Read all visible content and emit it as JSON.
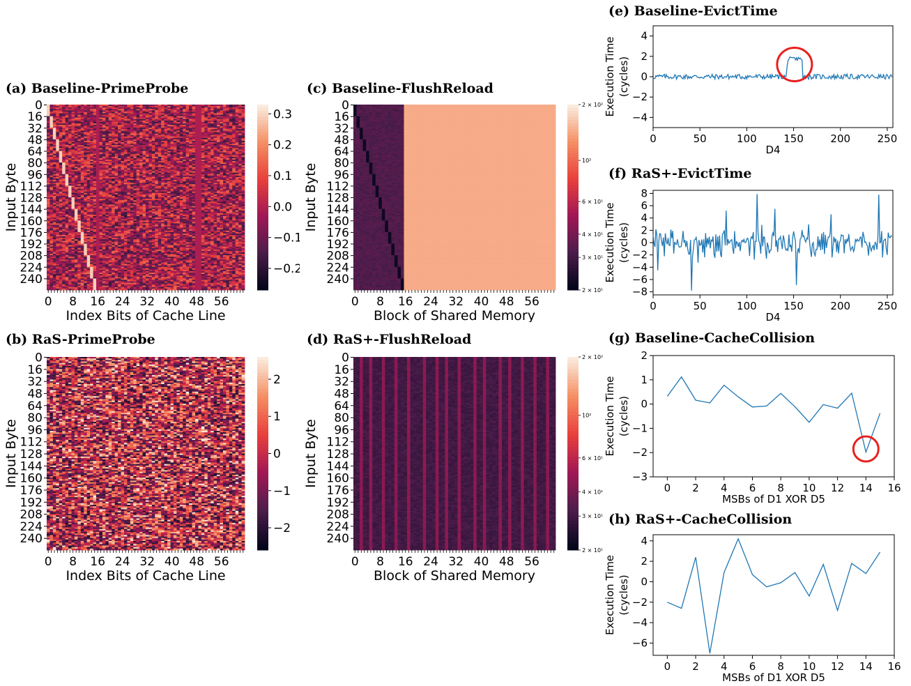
{
  "chart_data": [
    {
      "id": "a",
      "type": "heatmap",
      "title": "(a) Baseline-PrimeProbe",
      "xlabel": "Index Bits of Cache Line",
      "ylabel": "Input Byte",
      "xticks": [
        "0",
        "8",
        "16",
        "24",
        "32",
        "40",
        "48",
        "56"
      ],
      "yticks": [
        "0",
        "16",
        "32",
        "48",
        "64",
        "80",
        "96",
        "112",
        "128",
        "144",
        "160",
        "176",
        "192",
        "208",
        "224",
        "240"
      ],
      "colorbar": {
        "ticks": [
          "0.3",
          "0.2",
          "0.1",
          "0.0",
          "−0.1",
          "−0.2"
        ],
        "range": [
          -0.27,
          0.33
        ]
      },
      "rows": 256,
      "cols": 64,
      "pattern": "random noise; diagonal of high values from (col 0,row 0) to (col 15,row 255); uniform columns at 16 and 48-49"
    },
    {
      "id": "b",
      "type": "heatmap",
      "title": "(b) RaS-PrimeProbe",
      "xlabel": "Index Bits of Cache Line",
      "ylabel": "Input Byte",
      "xticks": [
        "0",
        "8",
        "16",
        "24",
        "32",
        "40",
        "48",
        "56"
      ],
      "yticks": [
        "0",
        "16",
        "32",
        "48",
        "64",
        "80",
        "96",
        "112",
        "128",
        "144",
        "160",
        "176",
        "192",
        "208",
        "224",
        "240"
      ],
      "colorbar": {
        "ticks": [
          "2",
          "1",
          "0",
          "−1",
          "−2"
        ],
        "range": [
          -2.6,
          2.6
        ]
      },
      "rows": 256,
      "cols": 64,
      "pattern": "random noise, no structure"
    },
    {
      "id": "c",
      "type": "heatmap",
      "title": "(c) Baseline-FlushReload",
      "xlabel": "Block of Shared Memory",
      "ylabel": "Input Byte",
      "xticks": [
        "0",
        "8",
        "16",
        "24",
        "32",
        "40",
        "48",
        "56"
      ],
      "yticks": [
        "0",
        "16",
        "32",
        "48",
        "64",
        "80",
        "96",
        "112",
        "128",
        "144",
        "160",
        "176",
        "192",
        "208",
        "224",
        "240"
      ],
      "colorbar": {
        "ticks": [
          "2 × 10²",
          "10²",
          "6 × 10¹",
          "4 × 10¹",
          "3 × 10¹",
          "2 × 10¹"
        ],
        "scale": "log",
        "range": [
          20,
          200
        ]
      },
      "rows": 256,
      "cols": 64,
      "pattern": "cols 0-15 low (~40) with a darker diagonal; cols 16-63 high (~200)"
    },
    {
      "id": "d",
      "type": "heatmap",
      "title": "(d) RaS+-FlushReload",
      "xlabel": "Block of Shared Memory",
      "ylabel": "Input Byte",
      "xticks": [
        "0",
        "8",
        "16",
        "24",
        "32",
        "40",
        "48",
        "56"
      ],
      "yticks": [
        "0",
        "16",
        "32",
        "48",
        "64",
        "80",
        "96",
        "112",
        "128",
        "144",
        "160",
        "176",
        "192",
        "208",
        "224",
        "240"
      ],
      "colorbar": {
        "ticks": [
          "2 × 10²",
          "10²",
          "6 × 10¹",
          "4 × 10¹",
          "3 × 10¹",
          "2 × 10¹"
        ],
        "scale": "log",
        "range": [
          20,
          200
        ]
      },
      "rows": 256,
      "cols": 64,
      "pattern": "all low values with vertical stripes"
    },
    {
      "id": "e",
      "type": "line",
      "title": "(e) Baseline-EvictTime",
      "xlabel": "D4",
      "ylabel": "Execution Time\n(cycles)",
      "xlim": [
        0,
        256
      ],
      "ylim": [
        -5,
        5
      ],
      "xticks": [
        0,
        50,
        100,
        150,
        200,
        250
      ],
      "yticks": [
        4,
        2,
        0,
        -2,
        -4
      ],
      "n": 256,
      "noise": 0.25,
      "plateau": {
        "x": [
          144,
          159
        ],
        "y": 1.75
      },
      "circle": {
        "x": 151,
        "y": 1.2
      }
    },
    {
      "id": "f",
      "type": "line",
      "title": "(f) RaS+-EvictTime",
      "xlabel": "D4",
      "ylabel": "Execution Time\n(cycles)",
      "xlim": [
        0,
        256
      ],
      "ylim": [
        -8.5,
        8.5
      ],
      "xticks": [
        0,
        50,
        100,
        150,
        200,
        250
      ],
      "yticks": [
        8,
        6,
        4,
        2,
        0,
        -2,
        -4,
        -6,
        -8
      ],
      "n": 256,
      "noise": 2.3,
      "spikes": [
        [
          41,
          -7.8
        ],
        [
          111,
          7.9
        ],
        [
          153,
          -6.9
        ],
        [
          241,
          7.8
        ],
        [
          78,
          5.2
        ],
        [
          130,
          5.5
        ],
        [
          5,
          -4.5
        ],
        [
          190,
          4.6
        ]
      ]
    },
    {
      "id": "g",
      "type": "line",
      "title": "(g) Baseline-CacheCollision",
      "xlabel": "MSBs of D1 XOR D5",
      "ylabel": "Execution Time\n(cycles)",
      "xlim": [
        -1,
        16
      ],
      "ylim": [
        -3,
        2
      ],
      "xticks": [
        0,
        2,
        4,
        6,
        8,
        10,
        12,
        14,
        16
      ],
      "yticks": [
        2,
        1,
        0,
        -1,
        -2,
        -3
      ],
      "x": [
        0,
        1,
        2,
        3,
        4,
        5,
        6,
        7,
        8,
        9,
        10,
        11,
        12,
        13,
        14,
        15
      ],
      "y": [
        0.32,
        1.12,
        0.16,
        0.05,
        0.78,
        0.3,
        -0.12,
        -0.08,
        0.44,
        -0.11,
        -0.75,
        -0.02,
        -0.17,
        0.45,
        -1.98,
        -0.38
      ],
      "circle": {
        "x": 14,
        "y": -1.85
      }
    },
    {
      "id": "h",
      "type": "line",
      "title": "(h) RaS+-CacheCollision",
      "xlabel": "MSBs of D1 XOR D5",
      "ylabel": "Execution Time\n(cycles)",
      "xlim": [
        -1,
        16
      ],
      "ylim": [
        -7.2,
        4.6
      ],
      "xticks": [
        0,
        2,
        4,
        6,
        8,
        10,
        12,
        14,
        16
      ],
      "yticks": [
        4,
        2,
        0,
        -2,
        -4,
        -6
      ],
      "x": [
        0,
        1,
        2,
        3,
        4,
        5,
        6,
        7,
        8,
        9,
        10,
        11,
        12,
        13,
        14,
        15
      ],
      "y": [
        -2.0,
        -2.6,
        2.4,
        -7.0,
        0.9,
        4.2,
        0.7,
        -0.5,
        -0.1,
        0.9,
        -1.4,
        1.7,
        -2.8,
        1.8,
        0.8,
        2.9
      ]
    }
  ]
}
